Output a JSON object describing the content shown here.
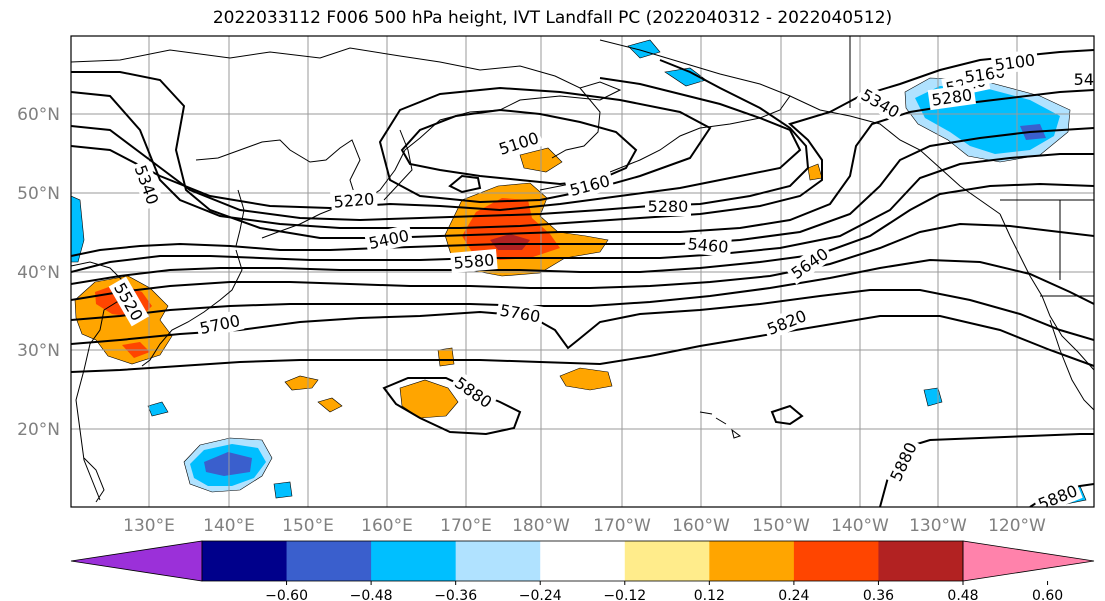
{
  "title": "2022033112 F006 500 hPa height, IVT Landfall PC (2022040312 - 2022040512)",
  "map": {
    "lat_labels": [
      "60°N",
      "50°N",
      "40°N",
      "30°N",
      "20°N"
    ],
    "lon_labels": [
      "130°E",
      "140°E",
      "150°E",
      "160°E",
      "170°E",
      "180°W",
      "170°W",
      "160°W",
      "150°W",
      "140°W",
      "130°W",
      "120°W"
    ],
    "contour_labels": [
      "5100",
      "5160",
      "5220",
      "5280",
      "5340",
      "5340",
      "5400",
      "5460",
      "5580",
      "5640",
      "5700",
      "5760",
      "5820",
      "5880",
      "5880",
      "5880",
      "5220",
      "5280",
      "5160",
      "5100",
      "5520",
      "5460"
    ]
  },
  "colorbar": {
    "colors": [
      "#9b30d9",
      "#00008b",
      "#3a5fcd",
      "#00bfff",
      "#b0e2ff",
      "#ffffff",
      "#ffec8b",
      "#ffa500",
      "#ff4500",
      "#b22222",
      "#ff82ab"
    ],
    "labels": [
      "−0.60",
      "−0.48",
      "−0.36",
      "−0.24",
      "−0.12",
      "0.12",
      "0.24",
      "0.36",
      "0.48",
      "0.60"
    ]
  },
  "chart_data": {
    "type": "contour map",
    "title": "2022033112 F006 500 hPa height, IVT Landfall PC (2022040312 - 2022040512)",
    "contour_field": "500 hPa height",
    "contour_levels": [
      5100,
      5160,
      5220,
      5280,
      5340,
      5400,
      5460,
      5520,
      5580,
      5640,
      5700,
      5760,
      5820,
      5880
    ],
    "shaded_field": "IVT Landfall PC",
    "shade_bins": [
      -0.6,
      -0.48,
      -0.36,
      -0.24,
      -0.12,
      0.12,
      0.24,
      0.36,
      0.48,
      0.6
    ],
    "lon_range": [
      "122°E",
      "114°W"
    ],
    "lat_range": [
      "10°N",
      "70°N"
    ],
    "grid": true,
    "colorbar": "bottom, horizontal, extended both ends"
  }
}
